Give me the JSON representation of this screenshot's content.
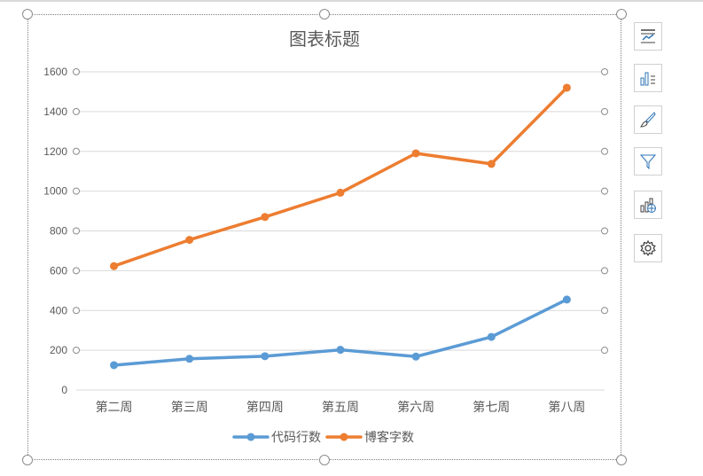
{
  "chart_data": {
    "type": "line",
    "title": "图表标题",
    "categories": [
      "第二周",
      "第三周",
      "第四周",
      "第五周",
      "第六周",
      "第七周",
      "第八周"
    ],
    "ylim": [
      0,
      1600
    ],
    "yticks": [
      0,
      200,
      400,
      600,
      800,
      1000,
      1200,
      1400,
      1600
    ],
    "grid": true,
    "legend": "bottom",
    "series": [
      {
        "name": "代码行数",
        "color": "#5b9bd5",
        "values": [
          125,
          157,
          170,
          202,
          168,
          267,
          455
        ]
      },
      {
        "name": "博客字数",
        "color": "#ed7d31",
        "values": [
          623,
          755,
          870,
          992,
          1190,
          1137,
          1520
        ]
      }
    ]
  },
  "side_toolbar": {
    "icons": [
      "chart-elements-icon",
      "chart-style-icon",
      "brush-icon",
      "filter-icon",
      "map-chart-icon",
      "settings-icon"
    ]
  }
}
